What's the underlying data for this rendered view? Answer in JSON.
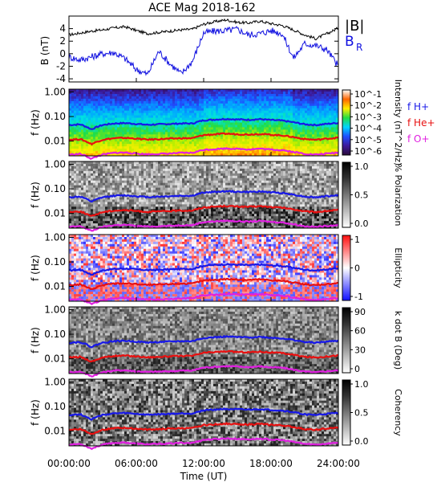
{
  "chart_data": {
    "type": "multi-panel-spectrogram",
    "title": "ACE Mag 2018-162",
    "xlabel": "Time (UT)",
    "x_ticks": [
      "00:00:00",
      "06:00:00",
      "12:00:00",
      "18:00:00",
      "24:00:00"
    ],
    "x_range_hours": [
      0,
      24
    ],
    "colors": {
      "total": "#000000",
      "radial": "#1010e0",
      "h": "#1818e8",
      "he": "#e81010",
      "o": "#e020e0"
    },
    "panels": [
      {
        "id": "field",
        "ylabel": "B (nT)",
        "y_ticks": [
          "4",
          "2",
          "0",
          "-2",
          "-4"
        ],
        "ylim": [
          -4.5,
          6
        ],
        "legend": [
          "|B|",
          "B",
          "R"
        ],
        "series": [
          {
            "name": "|B|",
            "x": [
              0,
              1,
              2,
              3,
              4,
              5,
              6,
              7,
              8,
              9,
              10,
              11,
              12,
              13,
              14,
              15,
              16,
              17,
              18,
              19,
              20,
              21,
              22,
              23,
              24
            ],
            "y": [
              3.0,
              3.3,
              3.6,
              3.8,
              4.1,
              4.3,
              3.7,
              3.2,
              3.4,
              3.6,
              3.8,
              3.9,
              4.7,
              5.1,
              5.4,
              5.0,
              4.9,
              5.2,
              4.8,
              4.5,
              3.8,
              3.0,
              2.4,
              3.2,
              4.1
            ]
          },
          {
            "name": "B_R",
            "x": [
              0,
              1,
              2,
              3,
              4,
              5,
              6,
              7,
              8,
              9,
              10,
              11,
              12,
              13,
              14,
              15,
              16,
              17,
              18,
              19,
              20,
              21,
              22,
              23,
              24
            ],
            "y": [
              -0.5,
              -1.0,
              -0.5,
              0.0,
              0.2,
              -0.8,
              -2.5,
              -3.3,
              0.4,
              -1.6,
              -3.2,
              -1.2,
              3.3,
              3.6,
              3.7,
              3.9,
              3.0,
              3.2,
              3.7,
              3.2,
              -0.7,
              1.6,
              1.3,
              0.6,
              -2.0
            ]
          }
        ]
      },
      {
        "id": "intensity",
        "ylabel": "f (Hz)",
        "y_ticks": [
          "1.00",
          "0.10",
          "0.01"
        ],
        "colorbar_label": "Intensity (nT^2/Hz)",
        "colorbar_ticks": [
          "10^-1",
          "10^-2",
          "10^-3",
          "10^-4",
          "10^-5",
          "10^-6"
        ],
        "legend": [
          "f H+",
          "f He+",
          "f O+"
        ]
      },
      {
        "id": "polarization",
        "ylabel": "f (Hz)",
        "y_ticks": [
          "1.00",
          "0.10",
          "0.01"
        ],
        "colorbar_label": "% Polarization",
        "colorbar_ticks": [
          "1.0",
          "0.5",
          "0.0"
        ]
      },
      {
        "id": "ellipticity",
        "ylabel": "f (Hz)",
        "y_ticks": [
          "1.00",
          "0.10",
          "0.01"
        ],
        "colorbar_label": "Ellipticity",
        "colorbar_ticks": [
          "1",
          "0",
          "-1"
        ]
      },
      {
        "id": "kdotb",
        "ylabel": "f (Hz)",
        "y_ticks": [
          "1.00",
          "0.10",
          "0.01"
        ],
        "colorbar_label": "k dot B (Deg)",
        "colorbar_ticks": [
          "90",
          "60",
          "30",
          "0"
        ]
      },
      {
        "id": "coherency",
        "ylabel": "f (Hz)",
        "y_ticks": [
          "1.00",
          "0.10",
          "0.01"
        ],
        "colorbar_label": "Coherency",
        "colorbar_ticks": [
          "1.0",
          "0.5",
          "0.0"
        ]
      }
    ],
    "gyrofrequency_lines": {
      "x": [
        0,
        1,
        2,
        3,
        4,
        5,
        6,
        7,
        8,
        9,
        10,
        11,
        12,
        13,
        14,
        15,
        16,
        17,
        18,
        19,
        20,
        21,
        22,
        23,
        24
      ],
      "f_H": [
        0.045,
        0.048,
        0.03,
        0.045,
        0.052,
        0.054,
        0.05,
        0.046,
        0.048,
        0.05,
        0.052,
        0.052,
        0.07,
        0.075,
        0.08,
        0.076,
        0.074,
        0.078,
        0.072,
        0.068,
        0.058,
        0.048,
        0.045,
        0.05,
        0.055
      ],
      "f_He": [
        0.0113,
        0.012,
        0.0075,
        0.0113,
        0.013,
        0.0135,
        0.0125,
        0.0115,
        0.012,
        0.0125,
        0.013,
        0.013,
        0.0175,
        0.0188,
        0.02,
        0.019,
        0.0185,
        0.0195,
        0.018,
        0.017,
        0.0145,
        0.012,
        0.0113,
        0.0125,
        0.0138
      ],
      "f_O": [
        0.0028,
        0.003,
        0.0019,
        0.0028,
        0.0033,
        0.0034,
        0.0031,
        0.0029,
        0.003,
        0.0031,
        0.0033,
        0.0033,
        0.0044,
        0.0047,
        0.005,
        0.0048,
        0.0046,
        0.0049,
        0.0045,
        0.0043,
        0.0036,
        0.003,
        0.0028,
        0.0031,
        0.0034
      ]
    }
  }
}
